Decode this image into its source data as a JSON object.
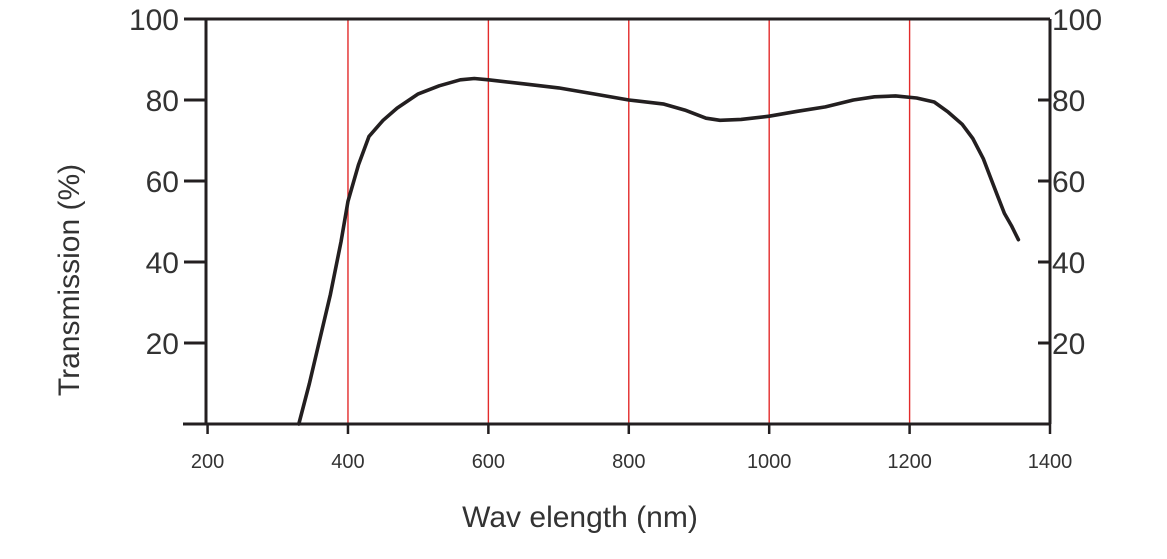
{
  "chart_data": {
    "type": "line",
    "xlabel": "Wav elength (nm)",
    "ylabel": "Transmission (%)",
    "xlim": [
      165,
      1400
    ],
    "ylim": [
      0,
      100
    ],
    "x_ticks": [
      "200",
      "400",
      "600",
      "800",
      "1000",
      "1200",
      "1400"
    ],
    "x_tick_values": [
      200,
      400,
      600,
      800,
      1000,
      1200,
      1400
    ],
    "y_ticks_left": [
      "20",
      "40",
      "60",
      "80",
      "100"
    ],
    "y_ticks_right": [
      "20",
      "40",
      "60",
      "80",
      "100"
    ],
    "y_tick_values": [
      20,
      40,
      60,
      80,
      100
    ],
    "vertical_reference_lines": [
      400,
      600,
      800,
      1000,
      1200
    ],
    "grid": false,
    "legend": "none",
    "colors": {
      "curve": "#231f20",
      "axes": "#231f20",
      "reference_lines": "#e32b2b",
      "text": "#333333"
    },
    "series": [
      {
        "x": [
          330,
          345,
          360,
          375,
          390,
          400,
          415,
          430,
          450,
          470,
          500,
          530,
          560,
          580,
          600,
          650,
          700,
          750,
          800,
          850,
          880,
          910,
          930,
          960,
          1000,
          1040,
          1080,
          1120,
          1150,
          1180,
          1210,
          1235,
          1255,
          1275,
          1290,
          1305,
          1315,
          1325,
          1335,
          1345,
          1355
        ],
        "y": [
          0,
          10,
          21,
          32,
          45,
          55,
          64,
          71,
          75,
          78,
          81.5,
          83.5,
          85,
          85.3,
          85,
          84,
          83,
          81.5,
          80,
          79,
          77.5,
          75.5,
          75,
          75.2,
          76,
          77.2,
          78.3,
          80,
          80.8,
          81,
          80.5,
          79.5,
          77,
          74,
          70.5,
          65.5,
          61,
          56.5,
          52,
          49,
          45.5
        ]
      }
    ]
  }
}
